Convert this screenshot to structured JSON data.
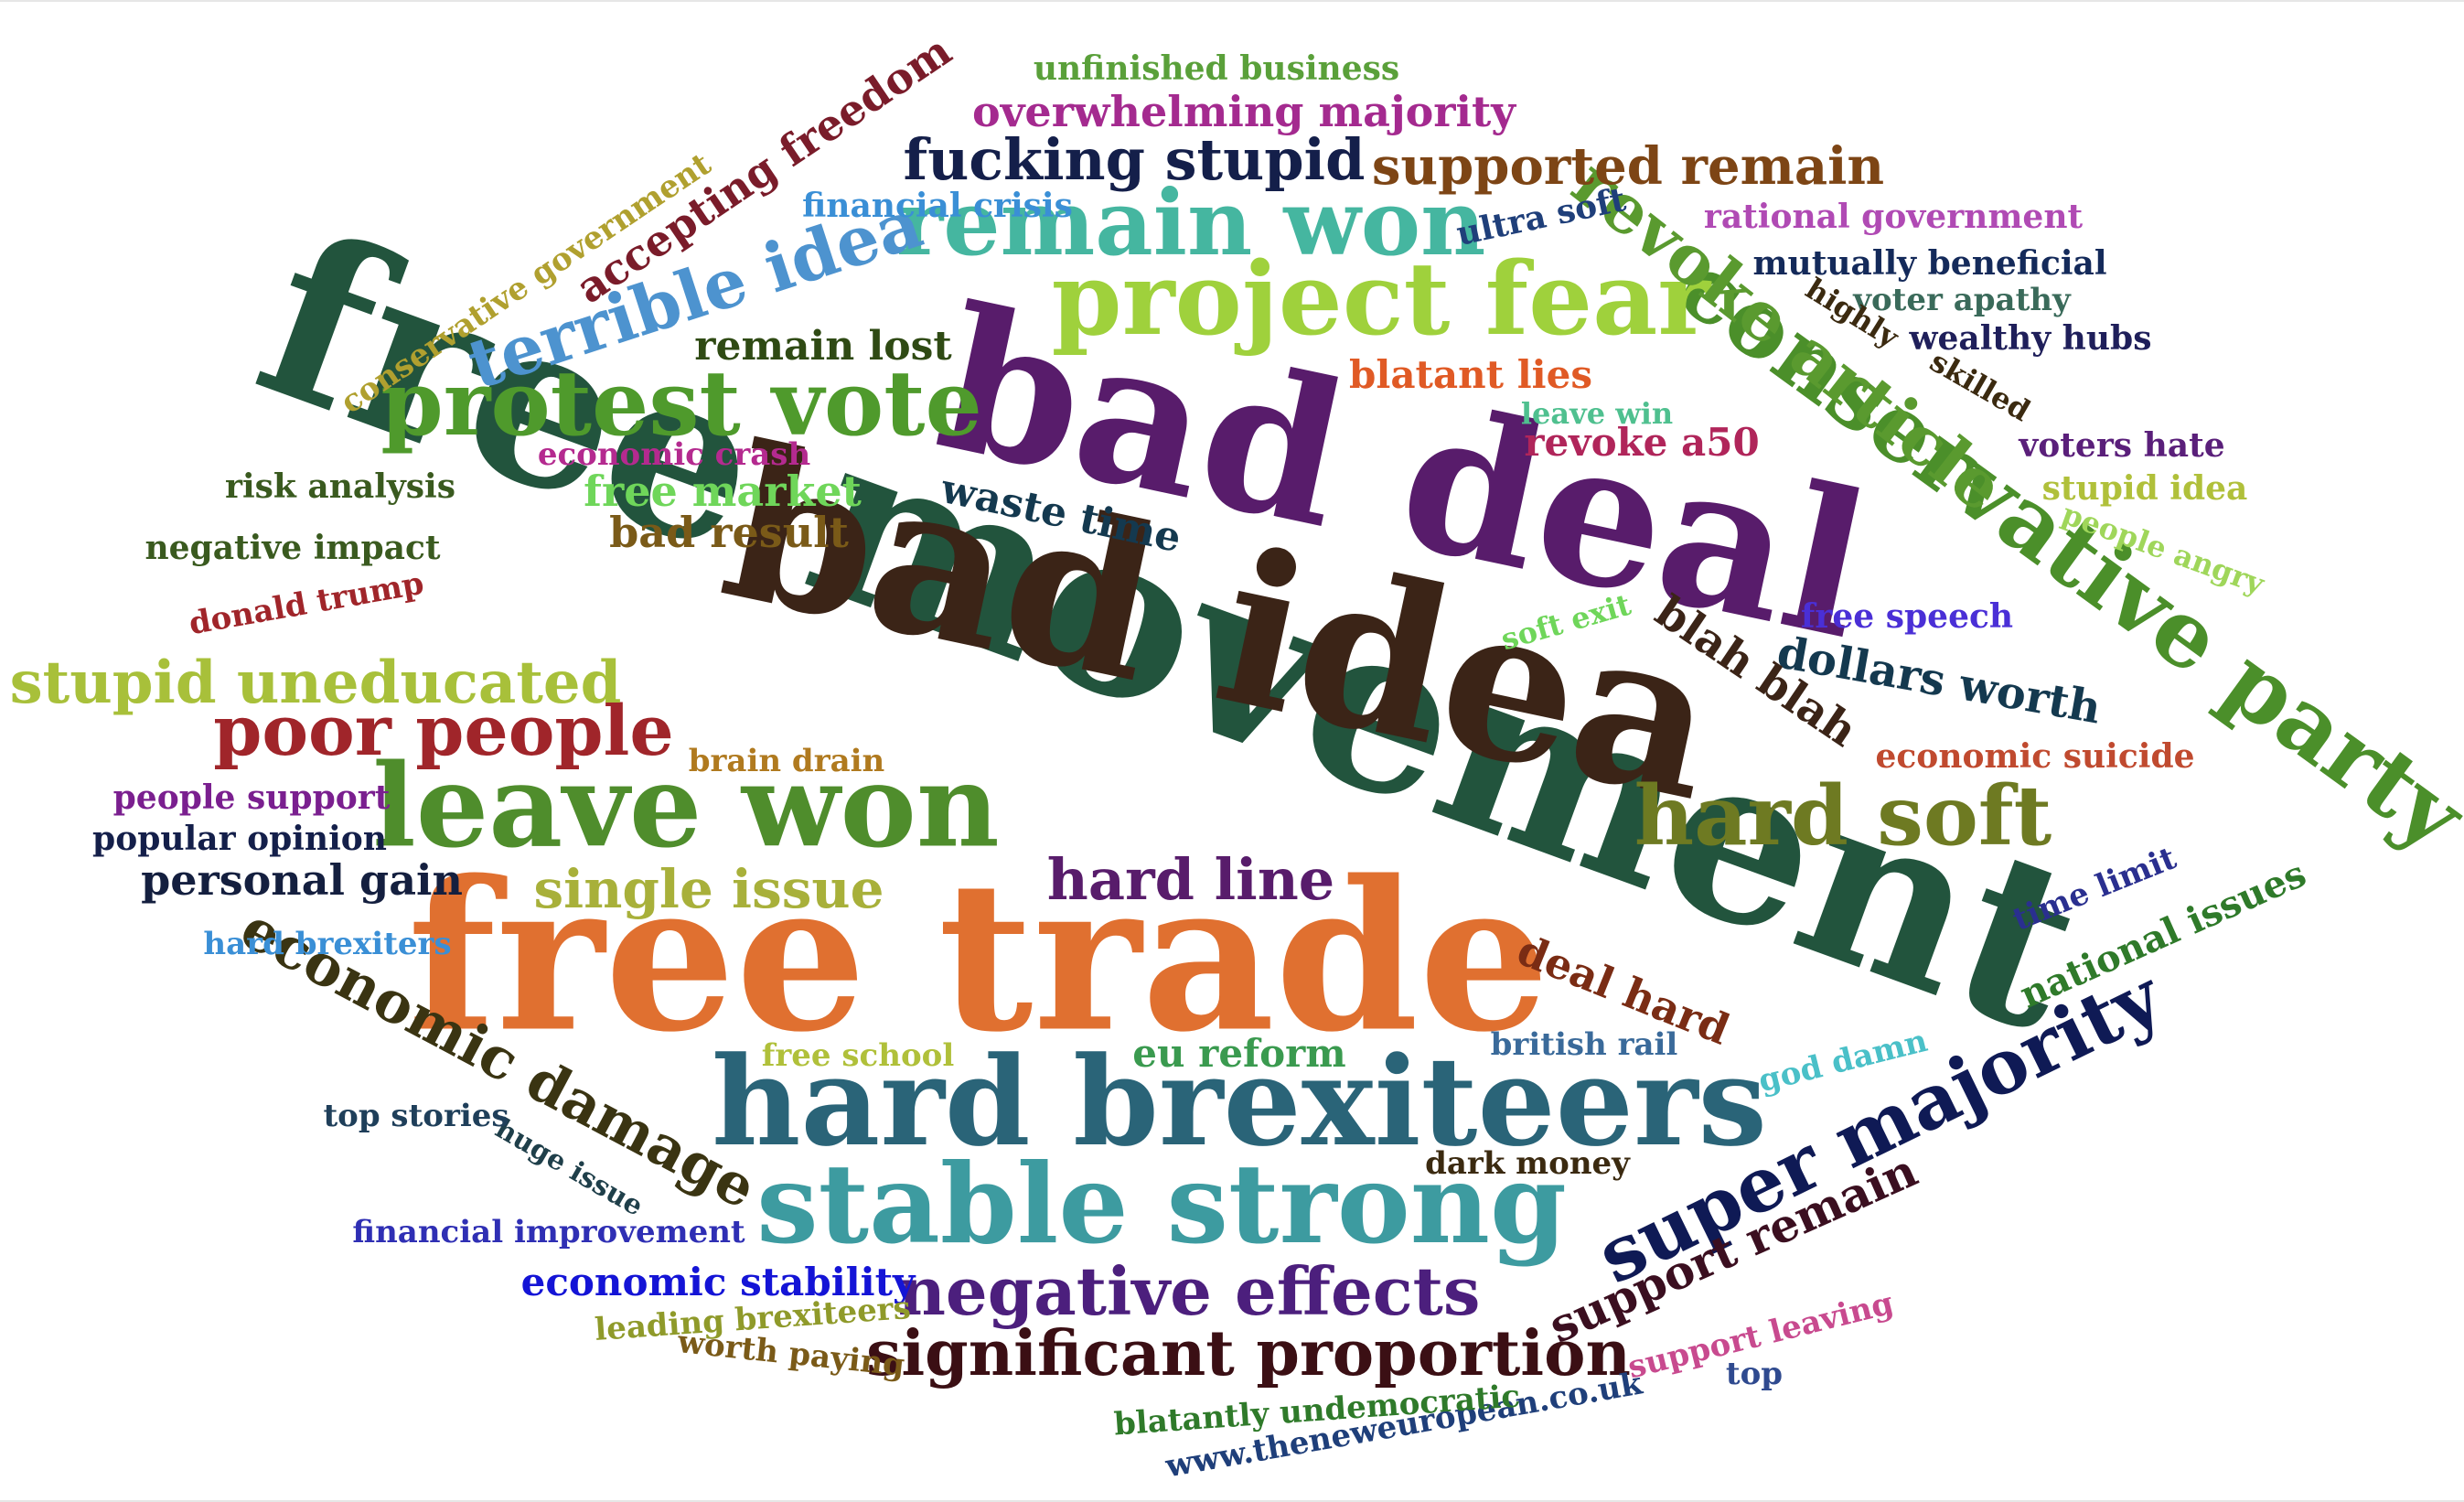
{
  "words": [
    {
      "text": "free movement",
      "color": "#22543d"
    },
    {
      "text": "bad idea",
      "color": "#3b2417"
    },
    {
      "text": "bad deal",
      "color": "#581c6b"
    },
    {
      "text": "free trade",
      "color": "#e07030"
    },
    {
      "text": "hard brexiteers",
      "color": "#2a6478"
    },
    {
      "text": "stable strong",
      "color": "#3d9ba0"
    },
    {
      "text": "leave won",
      "color": "#4f8d2c"
    },
    {
      "text": "conservative party",
      "color": "#4b8f2a"
    },
    {
      "text": "project fear",
      "color": "#9fd13c"
    },
    {
      "text": "remain won",
      "color": "#45b6a0"
    },
    {
      "text": "protest vote",
      "color": "#4f9a2c"
    },
    {
      "text": "super majority",
      "color": "#0f1a55"
    },
    {
      "text": "hard soft",
      "color": "#6e7a22"
    },
    {
      "text": "revoke article",
      "color": "#5a9a2f"
    },
    {
      "text": "terrible idea",
      "color": "#4d93cf"
    },
    {
      "text": "poor people",
      "color": "#a0252a"
    },
    {
      "text": "significant proportion",
      "color": "#3b0f14"
    },
    {
      "text": "negative effects",
      "color": "#4c1f7d"
    },
    {
      "text": "economic damage",
      "color": "#3a3412"
    },
    {
      "text": "stupid uneducated",
      "color": "#a8c03a"
    },
    {
      "text": "fucking stupid",
      "color": "#141f4a"
    },
    {
      "text": "hard line",
      "color": "#581c6b"
    },
    {
      "text": "supported remain",
      "color": "#7d4515"
    },
    {
      "text": "single issue",
      "color": "#a8b03a"
    },
    {
      "text": "support remain",
      "color": "#3b0f20"
    },
    {
      "text": "accepting freedom",
      "color": "#7a1c2a"
    },
    {
      "text": "dollars worth",
      "color": "#14394f"
    },
    {
      "text": "blah blah",
      "color": "#3b2417"
    },
    {
      "text": "deal hard",
      "color": "#7a2c14"
    },
    {
      "text": "overwhelming majority",
      "color": "#a42a8f"
    },
    {
      "text": "free market",
      "color": "#6fd65a"
    },
    {
      "text": "bad result",
      "color": "#7a5a18"
    },
    {
      "text": "remain lost",
      "color": "#2f4a14"
    },
    {
      "text": "waste time",
      "color": "#14394f"
    },
    {
      "text": "personal gain",
      "color": "#141f3f"
    },
    {
      "text": "national issues",
      "color": "#2f7a2a"
    },
    {
      "text": "revoke a50",
      "color": "#b0255a"
    },
    {
      "text": "blatant lies",
      "color": "#e05a25"
    },
    {
      "text": "eu reform",
      "color": "#3a9a4f"
    },
    {
      "text": "economic stability",
      "color": "#1414d6"
    },
    {
      "text": "unfinished business",
      "color": "#5aa03a"
    },
    {
      "text": "financial crisis",
      "color": "#3a8fd6"
    },
    {
      "text": "ultra soft",
      "color": "#1f3f7a"
    },
    {
      "text": "rational government",
      "color": "#b04ab4"
    },
    {
      "text": "mutually beneficial",
      "color": "#142a5a"
    },
    {
      "text": "voter apathy",
      "color": "#3a6a5a"
    },
    {
      "text": "highly",
      "color": "#3b2a10"
    },
    {
      "text": "skilled",
      "color": "#3b2a10"
    },
    {
      "text": "wealthy hubs",
      "color": "#1f1f5a"
    },
    {
      "text": "voters hate",
      "color": "#5a1f7a"
    },
    {
      "text": "stupid idea",
      "color": "#b0c03a"
    },
    {
      "text": "people angry",
      "color": "#9fd65a"
    },
    {
      "text": "free speech",
      "color": "#4a2fd6"
    },
    {
      "text": "economic suicide",
      "color": "#c04a2f"
    },
    {
      "text": "time limit",
      "color": "#2a2f8f"
    },
    {
      "text": "god damn",
      "color": "#4ac0c8"
    },
    {
      "text": "british rail",
      "color": "#3a6a9a"
    },
    {
      "text": "dark money",
      "color": "#3b2a10"
    },
    {
      "text": "support leaving",
      "color": "#c84a8f"
    },
    {
      "text": "top",
      "color": "#2f4a8f"
    },
    {
      "text": "www.theneweuropean.co.uk",
      "color": "#1f3f7a"
    },
    {
      "text": "blatantly undemocratic",
      "color": "#2f7a2a"
    },
    {
      "text": "worth paying",
      "color": "#7a5a18"
    },
    {
      "text": "leading brexiteers",
      "color": "#8f9a2a"
    },
    {
      "text": "financial improvement",
      "color": "#2f2fb4"
    },
    {
      "text": "huge issue",
      "color": "#1f3f4a"
    },
    {
      "text": "top stories",
      "color": "#1f3f5a"
    },
    {
      "text": "free school",
      "color": "#b0c03a"
    },
    {
      "text": "hard brexiters",
      "color": "#3a8fd6"
    },
    {
      "text": "popular opinion",
      "color": "#141f4a"
    },
    {
      "text": "people support",
      "color": "#7a1f8f"
    },
    {
      "text": "brain drain",
      "color": "#b07a1f"
    },
    {
      "text": "donald trump",
      "color": "#a0252a"
    },
    {
      "text": "negative impact",
      "color": "#3a5a1f"
    },
    {
      "text": "risk analysis",
      "color": "#3a5a1f"
    },
    {
      "text": "conservative government",
      "color": "#b0a02f"
    },
    {
      "text": "economic crash",
      "color": "#b42a8f"
    },
    {
      "text": "soft exit",
      "color": "#6fd65a"
    },
    {
      "text": "leave win",
      "color": "#4fc08f"
    }
  ]
}
